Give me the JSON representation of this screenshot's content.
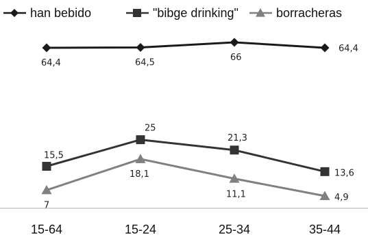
{
  "chart_data": {
    "type": "line",
    "categories": [
      "15-64",
      "15-24",
      "25-34",
      "35-44"
    ],
    "series": [
      {
        "name": "han bebido",
        "values": [
          64.4,
          64.5,
          66,
          64.4
        ],
        "labels": [
          "64,4",
          "64,5",
          "66",
          "64,4"
        ],
        "color": "#1a1a1a",
        "marker": "diamond"
      },
      {
        "name": "\"bibge drinking\"",
        "values": [
          15.5,
          25,
          21.3,
          13.6
        ],
        "labels": [
          "15,5",
          "25",
          "21,3",
          "13,6"
        ],
        "color": "#333333",
        "marker": "square"
      },
      {
        "name": "borracheras",
        "values": [
          7,
          18.1,
          11.1,
          4.9
        ],
        "labels": [
          "7",
          "18,1",
          "11,1",
          "4,9"
        ],
        "color": "#808080",
        "marker": "triangle"
      }
    ],
    "xlabel": "",
    "ylabel": "",
    "legend_position": "top",
    "grid": false,
    "axis_line_color": "#bbbbbb"
  }
}
